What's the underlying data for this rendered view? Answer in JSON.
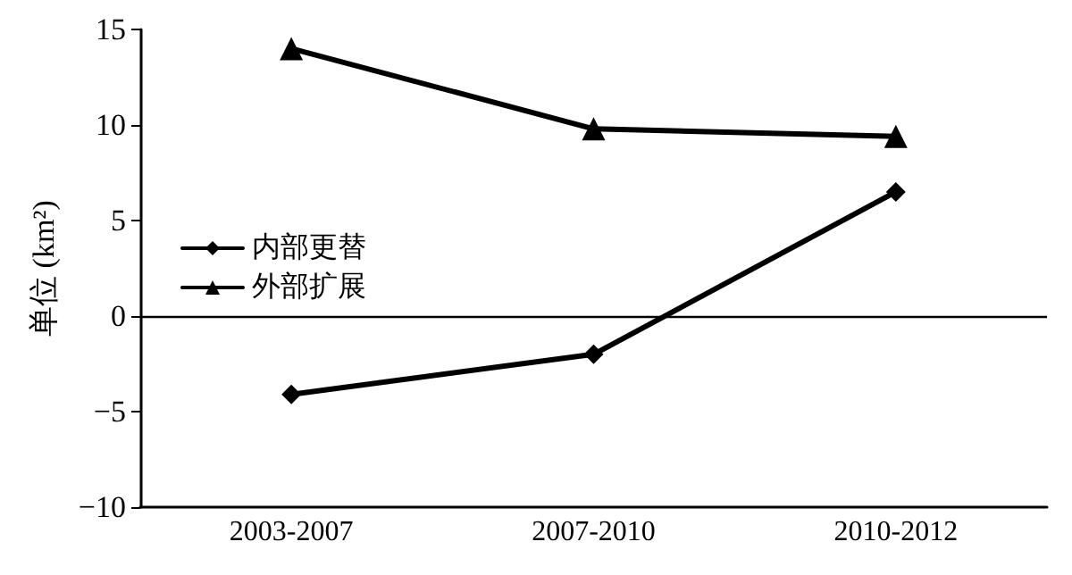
{
  "chart_data": {
    "type": "line",
    "ylabel": "单位 (km²)",
    "categories": [
      "2003-2007",
      "2007-2010",
      "2010-2012"
    ],
    "series": [
      {
        "name": "内部更替",
        "color": "#000000",
        "marker": "diamond",
        "values": [
          -4.1,
          -2.0,
          6.5
        ]
      },
      {
        "name": "外部扩展",
        "color": "#000000",
        "marker": "triangle",
        "values": [
          14.0,
          9.8,
          9.4
        ]
      }
    ],
    "ylim": [
      -10,
      15
    ],
    "yticks": [
      -10,
      -5,
      0,
      5,
      10,
      15
    ],
    "grid": false,
    "ref_lines": [
      {
        "axis": "y",
        "value": 0,
        "color": "#000000",
        "line_style": "solid"
      }
    ],
    "legend": "left",
    "line_style": "solid"
  }
}
